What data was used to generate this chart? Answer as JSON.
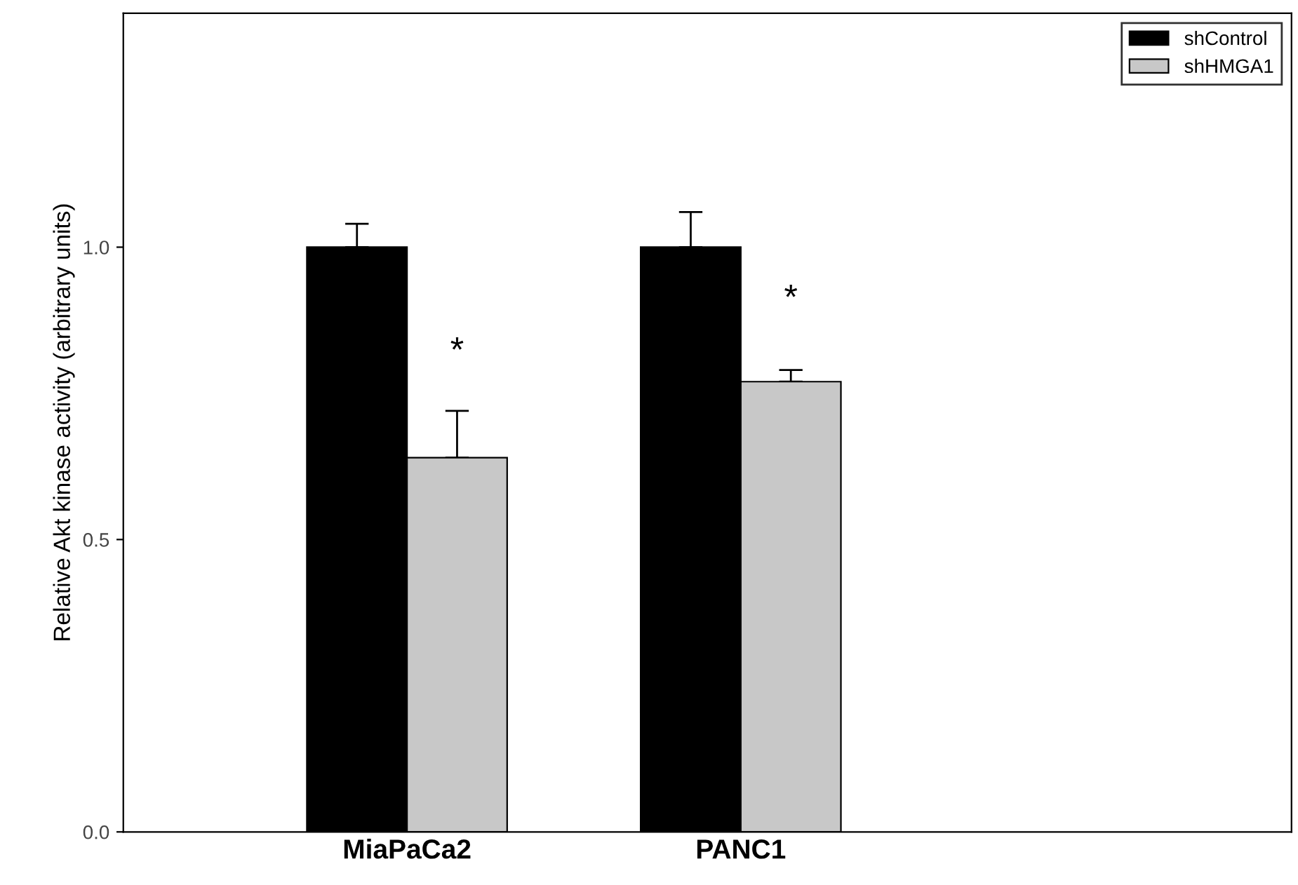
{
  "chart_data": {
    "type": "bar",
    "ylabel": "Relative Akt kinase activity (arbitrary units)",
    "categories": [
      "MiaPaCa2",
      "PANC1"
    ],
    "series": [
      {
        "name": "shControl",
        "color": "#000000",
        "values": [
          1.0,
          1.0
        ],
        "errors": [
          [
            1.0,
            1.04
          ],
          [
            1.0,
            1.06
          ]
        ]
      },
      {
        "name": "shHMGA1",
        "color": "#c8c8c8",
        "values": [
          0.64,
          0.77
        ],
        "errors": [
          [
            0.64,
            0.72
          ],
          [
            0.77,
            0.79
          ]
        ]
      }
    ],
    "ylim": [
      0,
      1.4
    ],
    "yticks": [
      {
        "value": 0,
        "label": "0.0"
      },
      {
        "value": 0.5,
        "label": "0.5"
      },
      {
        "value": 1,
        "label": "1.0"
      }
    ],
    "annotations": [
      {
        "text": "*",
        "x": "MiaPaCa2",
        "y": 0.82
      },
      {
        "text": "*",
        "x": "PANC1",
        "y": 0.91
      }
    ],
    "legend": "top right",
    "grid": false
  }
}
